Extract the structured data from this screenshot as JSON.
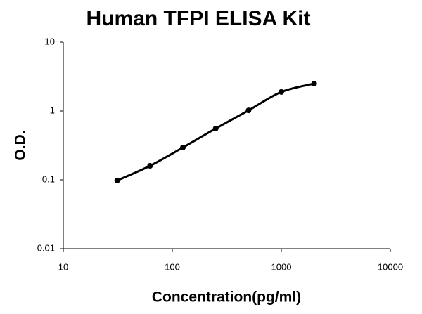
{
  "chart_data": {
    "type": "line",
    "title": "Human TFPI ELISA Kit",
    "x_label": "Concentration(pg/ml)",
    "y_label": "O.D.",
    "x": [
      31.25,
      62.5,
      125,
      250,
      500,
      1000,
      2000
    ],
    "values": [
      0.098,
      0.16,
      0.295,
      0.556,
      1.02,
      1.89,
      2.5
    ],
    "color": "#000000",
    "markers": true,
    "smooth": true,
    "xscale": "log",
    "yscale": "log",
    "xlim": [
      10,
      10000
    ],
    "xticks": [
      10,
      100,
      1000,
      10000
    ],
    "ylim": [
      0.01,
      10
    ],
    "yticks": [
      0.01,
      0.1,
      1,
      10
    ]
  }
}
